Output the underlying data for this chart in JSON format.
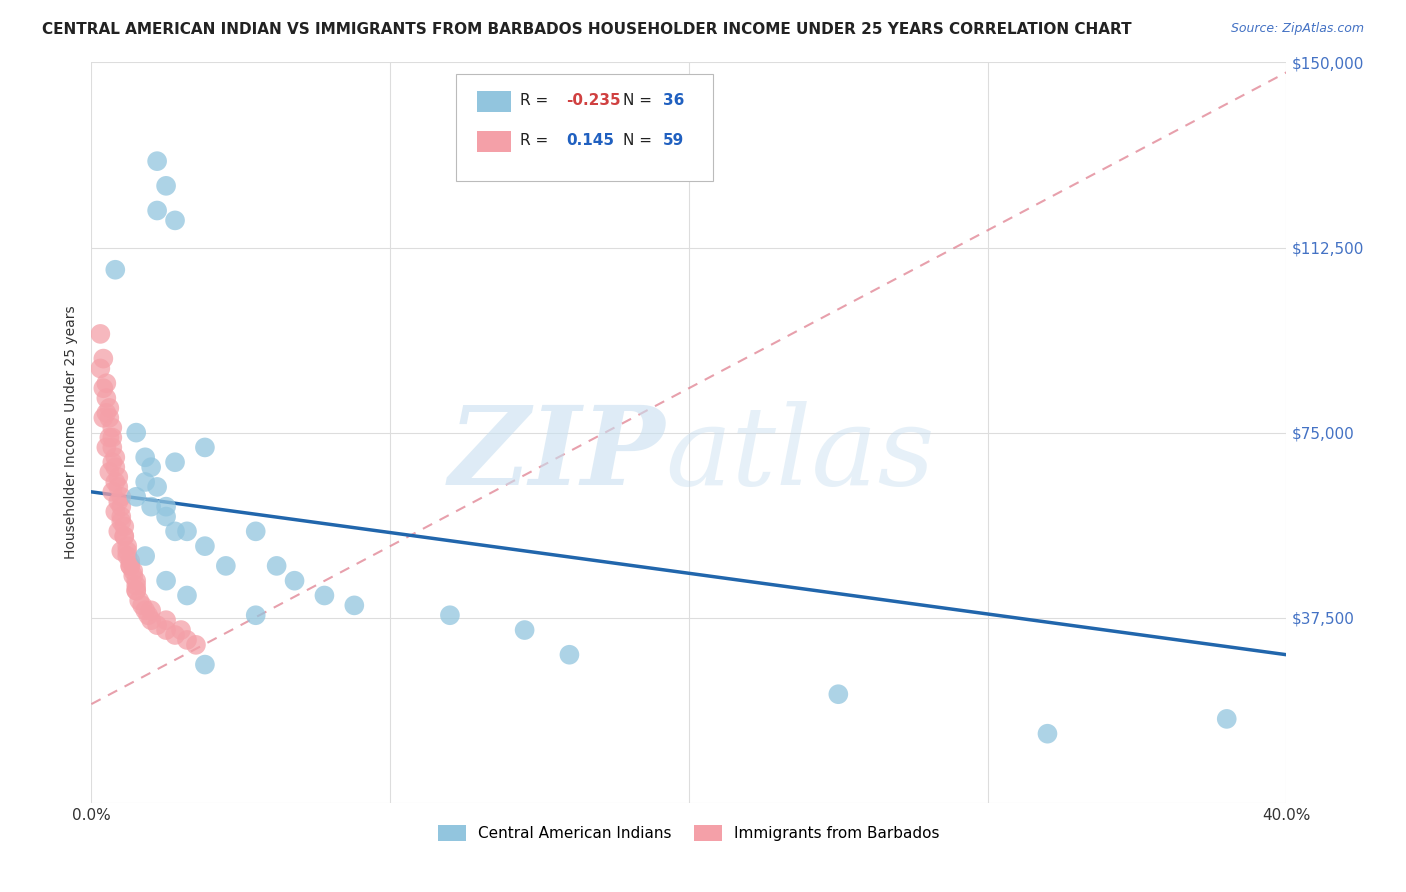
{
  "title": "CENTRAL AMERICAN INDIAN VS IMMIGRANTS FROM BARBADOS HOUSEHOLDER INCOME UNDER 25 YEARS CORRELATION CHART",
  "source": "Source: ZipAtlas.com",
  "ylabel": "Householder Income Under 25 years",
  "xlim": [
    0,
    0.4
  ],
  "ylim": [
    0,
    150000
  ],
  "yticks": [
    0,
    37500,
    75000,
    112500,
    150000
  ],
  "ytick_labels": [
    "",
    "$37,500",
    "$75,000",
    "$112,500",
    "$150,000"
  ],
  "xticks": [
    0.0,
    0.1,
    0.2,
    0.3,
    0.4
  ],
  "legend_label1": "Central American Indians",
  "legend_label2": "Immigrants from Barbados",
  "blue_color": "#92c5de",
  "pink_color": "#f4a0a8",
  "trend_blue_color": "#2166ac",
  "trend_pink_color": "#e08090",
  "right_tick_color": "#4472c4",
  "background_color": "#ffffff",
  "grid_color": "#dddddd",
  "blue_x": [
    0.022,
    0.025,
    0.022,
    0.028,
    0.008,
    0.038,
    0.028,
    0.018,
    0.015,
    0.02,
    0.025,
    0.028,
    0.015,
    0.018,
    0.02,
    0.022,
    0.025,
    0.032,
    0.038,
    0.045,
    0.055,
    0.062,
    0.055,
    0.068,
    0.078,
    0.088,
    0.12,
    0.145,
    0.16,
    0.018,
    0.025,
    0.032,
    0.038,
    0.25,
    0.32,
    0.38
  ],
  "blue_y": [
    130000,
    125000,
    120000,
    118000,
    108000,
    72000,
    69000,
    65000,
    62000,
    60000,
    58000,
    55000,
    75000,
    70000,
    68000,
    64000,
    60000,
    55000,
    52000,
    48000,
    55000,
    48000,
    38000,
    45000,
    42000,
    40000,
    38000,
    35000,
    30000,
    50000,
    45000,
    42000,
    28000,
    22000,
    14000,
    17000
  ],
  "pink_x": [
    0.003,
    0.004,
    0.005,
    0.005,
    0.006,
    0.006,
    0.007,
    0.007,
    0.007,
    0.008,
    0.008,
    0.009,
    0.009,
    0.01,
    0.01,
    0.01,
    0.011,
    0.011,
    0.012,
    0.012,
    0.013,
    0.013,
    0.014,
    0.014,
    0.015,
    0.015,
    0.003,
    0.004,
    0.005,
    0.006,
    0.007,
    0.008,
    0.009,
    0.01,
    0.011,
    0.012,
    0.013,
    0.015,
    0.016,
    0.017,
    0.018,
    0.019,
    0.02,
    0.022,
    0.025,
    0.028,
    0.032,
    0.004,
    0.005,
    0.006,
    0.007,
    0.008,
    0.009,
    0.01,
    0.015,
    0.02,
    0.025,
    0.03,
    0.035
  ],
  "pink_y": [
    95000,
    90000,
    85000,
    82000,
    80000,
    78000,
    76000,
    74000,
    72000,
    70000,
    68000,
    66000,
    64000,
    62000,
    60000,
    58000,
    56000,
    54000,
    52000,
    50000,
    49000,
    48000,
    47000,
    46000,
    45000,
    44000,
    88000,
    84000,
    79000,
    74000,
    69000,
    65000,
    61000,
    57000,
    54000,
    51000,
    48000,
    43000,
    41000,
    40000,
    39000,
    38000,
    37000,
    36000,
    35000,
    34000,
    33000,
    78000,
    72000,
    67000,
    63000,
    59000,
    55000,
    51000,
    43000,
    39000,
    37000,
    35000,
    32000
  ],
  "blue_trend_x0": 0.0,
  "blue_trend_y0": 63000,
  "blue_trend_x1": 0.4,
  "blue_trend_y1": 30000,
  "pink_trend_x0": 0.0,
  "pink_trend_y0": 20000,
  "pink_trend_x1": 0.4,
  "pink_trend_y1": 148000
}
